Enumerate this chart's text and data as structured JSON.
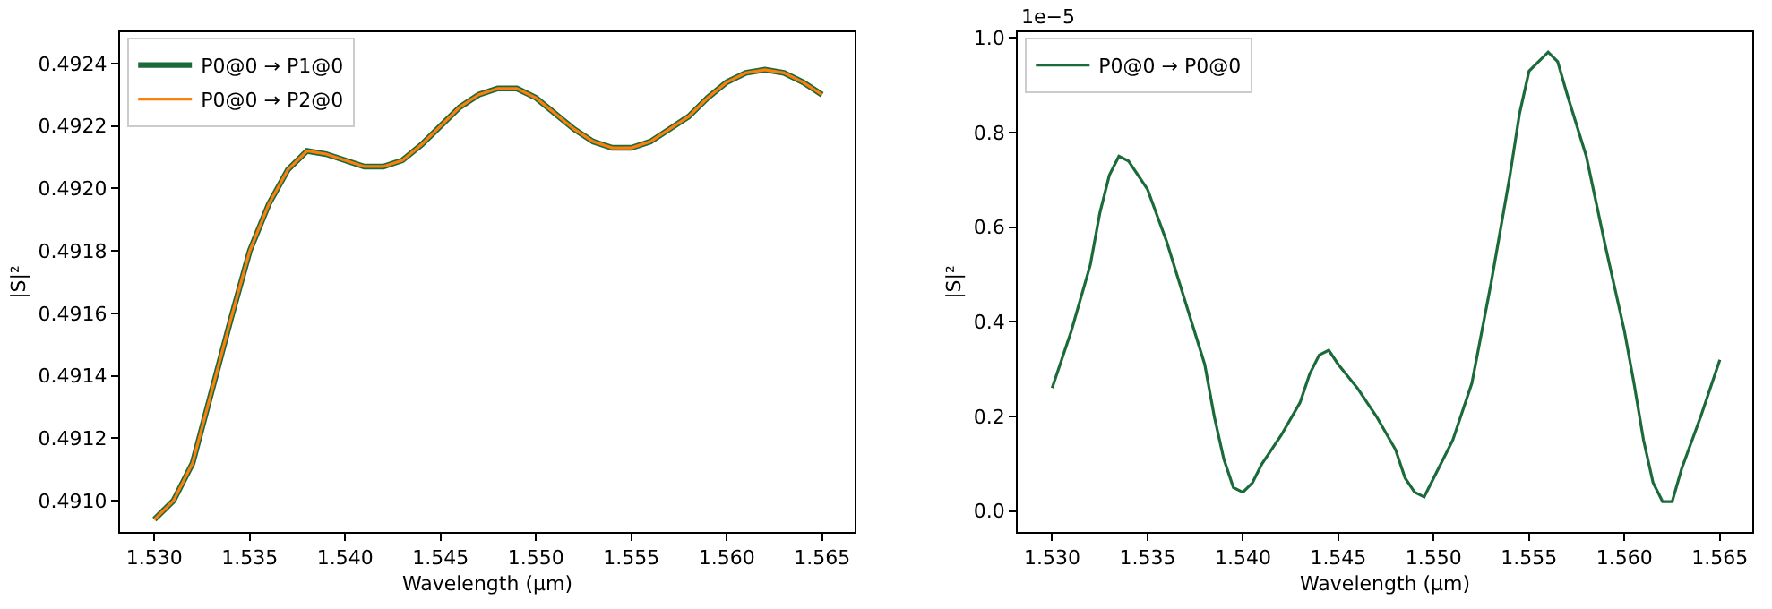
{
  "chart_data": [
    {
      "type": "line",
      "xlabel": "Wavelength (µm)",
      "ylabel": "|S|²",
      "legend": "top left",
      "x": [
        1.53,
        1.531,
        1.532,
        1.533,
        1.534,
        1.535,
        1.536,
        1.537,
        1.538,
        1.539,
        1.54,
        1.541,
        1.542,
        1.543,
        1.544,
        1.545,
        1.546,
        1.547,
        1.548,
        1.549,
        1.55,
        1.551,
        1.552,
        1.553,
        1.554,
        1.555,
        1.556,
        1.557,
        1.558,
        1.559,
        1.56,
        1.561,
        1.562,
        1.563,
        1.564,
        1.565
      ],
      "series": [
        {
          "name": "P0@0 → P1@0",
          "color": "#1b6b3a",
          "values": [
            0.49094,
            0.491,
            0.49112,
            0.49135,
            0.49158,
            0.4918,
            0.49195,
            0.49206,
            0.49212,
            0.49211,
            0.49209,
            0.49207,
            0.49207,
            0.49209,
            0.49214,
            0.4922,
            0.49226,
            0.4923,
            0.49232,
            0.49232,
            0.49229,
            0.49224,
            0.49219,
            0.49215,
            0.49213,
            0.49213,
            0.49215,
            0.49219,
            0.49223,
            0.49229,
            0.49234,
            0.49237,
            0.49238,
            0.49237,
            0.49234,
            0.4923
          ]
        },
        {
          "name": "P0@0 → P2@0",
          "color": "#ff7f0e",
          "values": [
            0.49094,
            0.491,
            0.49112,
            0.49135,
            0.49158,
            0.4918,
            0.49195,
            0.49206,
            0.49212,
            0.49211,
            0.49209,
            0.49207,
            0.49207,
            0.49209,
            0.49214,
            0.4922,
            0.49226,
            0.4923,
            0.49232,
            0.49232,
            0.49229,
            0.49224,
            0.49219,
            0.49215,
            0.49213,
            0.49213,
            0.49215,
            0.49219,
            0.49223,
            0.49229,
            0.49234,
            0.49237,
            0.49238,
            0.49237,
            0.49234,
            0.4923
          ]
        }
      ],
      "xlim": [
        1.5282,
        1.5667
      ],
      "xticks": [
        {
          "value": 1.53,
          "label": "1.530"
        },
        1.535,
        {
          "value": 1.54,
          "label": "1.540"
        },
        1.545,
        {
          "value": 1.55,
          "label": "1.550"
        },
        1.555,
        {
          "value": 1.56,
          "label": "1.560"
        },
        1.565
      ],
      "ylim": [
        0.4909,
        0.4925
      ],
      "yticks": [
        {
          "value": 0.491,
          "label": "0.4910"
        },
        0.4912,
        0.4914,
        0.4916,
        0.4918,
        {
          "value": 0.492,
          "label": "0.4920"
        },
        0.4922,
        0.4924
      ]
    },
    {
      "type": "line",
      "xlabel": "Wavelength (µm)",
      "ylabel": "|S|²",
      "legend": "top left",
      "annotations": [
        "1e−5"
      ],
      "x": [
        1.53,
        1.531,
        1.532,
        1.5325,
        1.533,
        1.5335,
        1.534,
        1.535,
        1.536,
        1.537,
        1.538,
        1.5385,
        1.539,
        1.5395,
        1.54,
        1.5405,
        1.541,
        1.542,
        1.543,
        1.5435,
        1.544,
        1.5445,
        1.545,
        1.546,
        1.547,
        1.548,
        1.5485,
        1.549,
        1.5495,
        1.55,
        1.551,
        1.552,
        1.553,
        1.554,
        1.5545,
        1.555,
        1.556,
        1.5565,
        1.557,
        1.558,
        1.559,
        1.56,
        1.5605,
        1.561,
        1.5615,
        1.562,
        1.5625,
        1.563,
        1.564,
        1.565
      ],
      "series": [
        {
          "name": "P0@0 → P0@0",
          "color": "#1b6b3a",
          "values": [
            0.26,
            0.38,
            0.52,
            0.63,
            0.71,
            0.75,
            0.74,
            0.68,
            0.57,
            0.44,
            0.31,
            0.2,
            0.11,
            0.05,
            0.04,
            0.06,
            0.1,
            0.16,
            0.23,
            0.29,
            0.33,
            0.34,
            0.31,
            0.26,
            0.2,
            0.13,
            0.07,
            0.04,
            0.03,
            0.07,
            0.15,
            0.27,
            0.48,
            0.71,
            0.84,
            0.93,
            0.97,
            0.95,
            0.88,
            0.75,
            0.56,
            0.38,
            0.27,
            0.15,
            0.06,
            0.02,
            0.02,
            0.09,
            0.2,
            0.32
          ]
        }
      ],
      "xlim": [
        1.5282,
        1.5667
      ],
      "xticks": [
        {
          "value": 1.53,
          "label": "1.530"
        },
        1.535,
        {
          "value": 1.54,
          "label": "1.540"
        },
        1.545,
        {
          "value": 1.55,
          "label": "1.550"
        },
        1.555,
        {
          "value": 1.56,
          "label": "1.560"
        },
        1.565
      ],
      "ylim": [
        -0.044,
        1.012
      ],
      "yticks": [
        {
          "value": 0,
          "label": "0.0"
        },
        0.2,
        0.4,
        0.6,
        0.8,
        {
          "value": 1,
          "label": "1.0"
        }
      ]
    }
  ]
}
